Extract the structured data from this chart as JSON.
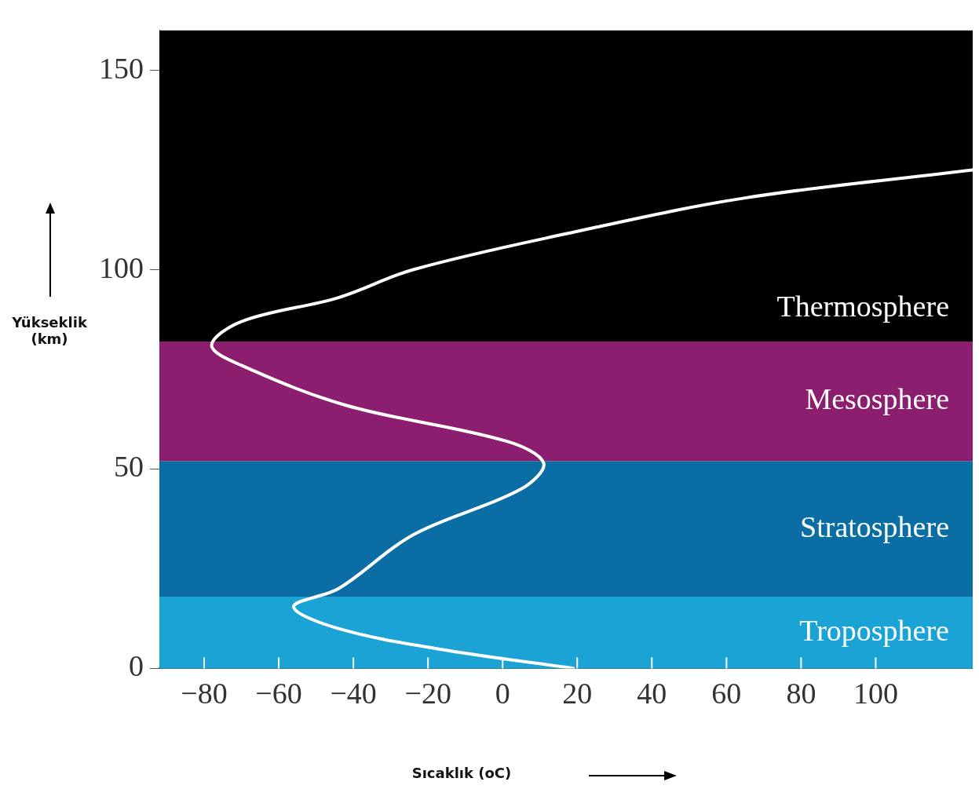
{
  "chart_data": {
    "type": "line",
    "xlabel": "Sıcaklık (oC)",
    "ylabel": "Yükseklik (km)",
    "x": [
      19,
      -16,
      -44,
      -56,
      -44,
      -24,
      5,
      11,
      1,
      -42,
      -70,
      -78,
      -70,
      -44,
      -24,
      17,
      65,
      126
    ],
    "values": [
      0,
      4.7,
      10,
      15.5,
      20,
      33.5,
      45,
      51.5,
      57,
      66,
      76,
      81,
      87,
      93,
      100,
      109,
      118,
      125
    ],
    "color": "#ffffff",
    "xlim": [
      -92,
      126
    ],
    "ylim": [
      0,
      160
    ],
    "xticks": [
      -80,
      -60,
      -40,
      -20,
      0,
      20,
      40,
      60,
      80,
      100
    ],
    "yticks": [
      0,
      50,
      100,
      150
    ],
    "legend": false,
    "marker": "none",
    "line_style": "solid",
    "bands": [
      {
        "axis": "y",
        "from": 0,
        "to": 18,
        "label": "Troposphere",
        "color": "#1ba3d6"
      },
      {
        "axis": "y",
        "from": 18,
        "to": 52,
        "label": "Stratosphere",
        "color": "#0a6ea4"
      },
      {
        "axis": "y",
        "from": 52,
        "to": 82,
        "label": "Mesosphere",
        "color": "#8b1e6e"
      },
      {
        "axis": "y",
        "from": 82,
        "to": 160,
        "label": "Thermosphere",
        "color": "#000000"
      }
    ]
  }
}
